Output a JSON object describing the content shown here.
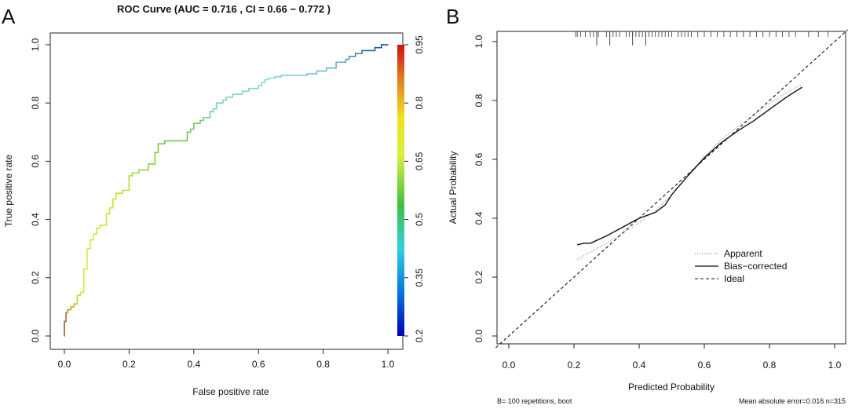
{
  "panel_labels": {
    "a": "A",
    "b": "B"
  },
  "chart_data": [
    {
      "type": "line",
      "title": "ROC Curve (AUC = 0.716 , CI = 0.66 − 0.772 )",
      "xlabel": "False positive rate",
      "ylabel": "True positive rate",
      "xlim": [
        0,
        1
      ],
      "ylim": [
        0,
        1
      ],
      "xticks": [
        "0.0",
        "0.2",
        "0.4",
        "0.6",
        "0.8",
        "1.0"
      ],
      "yticks": [
        "0.0",
        "0.2",
        "0.4",
        "0.6",
        "0.8",
        "1.0"
      ],
      "grid": false,
      "colorbar": {
        "ticks": [
          "0.2",
          "0.35",
          "0.5",
          "0.65",
          "0.8",
          "0.95"
        ],
        "range": [
          0.2,
          0.95
        ],
        "colors": [
          "#0000b0",
          "#0070e0",
          "#30d0e0",
          "#40c040",
          "#d8f040",
          "#f0e020",
          "#e08020",
          "#d01010"
        ]
      },
      "series": [
        {
          "x": [
            0,
            0,
            0.005,
            0.005,
            0.01,
            0.01,
            0.02,
            0.02,
            0.03,
            0.03,
            0.04,
            0.04,
            0.05,
            0.05,
            0.06,
            0.06,
            0.07,
            0.07,
            0.08,
            0.08,
            0.09,
            0.09,
            0.1,
            0.1,
            0.11,
            0.11,
            0.13,
            0.13,
            0.14,
            0.14,
            0.15,
            0.15,
            0.16,
            0.16,
            0.18,
            0.18,
            0.2,
            0.2,
            0.21,
            0.21,
            0.23,
            0.23,
            0.26,
            0.26,
            0.28,
            0.28,
            0.29,
            0.29,
            0.31,
            0.31,
            0.38,
            0.38,
            0.39,
            0.39,
            0.4,
            0.4,
            0.42,
            0.42,
            0.43,
            0.43,
            0.45,
            0.45,
            0.46,
            0.46,
            0.47,
            0.47,
            0.49,
            0.49,
            0.5,
            0.5,
            0.52,
            0.52,
            0.55,
            0.55,
            0.57,
            0.57,
            0.6,
            0.6,
            0.61,
            0.61,
            0.62,
            0.62,
            0.63,
            0.63,
            0.65,
            0.65,
            0.67,
            0.67,
            0.75,
            0.75,
            0.78,
            0.78,
            0.81,
            0.81,
            0.84,
            0.84,
            0.87,
            0.87,
            0.88,
            0.88,
            0.9,
            0.9,
            0.92,
            0.92,
            0.96,
            0.96,
            0.98,
            0.98,
            1.0
          ],
          "y": [
            0,
            0.05,
            0.05,
            0.08,
            0.08,
            0.09,
            0.09,
            0.1,
            0.1,
            0.11,
            0.11,
            0.14,
            0.14,
            0.15,
            0.15,
            0.23,
            0.23,
            0.3,
            0.3,
            0.33,
            0.33,
            0.35,
            0.35,
            0.37,
            0.37,
            0.38,
            0.38,
            0.42,
            0.42,
            0.44,
            0.44,
            0.47,
            0.47,
            0.49,
            0.49,
            0.5,
            0.5,
            0.55,
            0.55,
            0.56,
            0.56,
            0.57,
            0.57,
            0.59,
            0.59,
            0.63,
            0.63,
            0.66,
            0.66,
            0.67,
            0.67,
            0.7,
            0.7,
            0.71,
            0.71,
            0.73,
            0.73,
            0.74,
            0.74,
            0.75,
            0.75,
            0.77,
            0.77,
            0.78,
            0.78,
            0.8,
            0.8,
            0.81,
            0.81,
            0.82,
            0.82,
            0.83,
            0.83,
            0.84,
            0.84,
            0.85,
            0.85,
            0.86,
            0.86,
            0.87,
            0.87,
            0.88,
            0.88,
            0.885,
            0.885,
            0.89,
            0.89,
            0.895,
            0.895,
            0.9,
            0.9,
            0.91,
            0.91,
            0.92,
            0.92,
            0.94,
            0.94,
            0.95,
            0.95,
            0.96,
            0.96,
            0.97,
            0.97,
            0.98,
            0.98,
            0.99,
            0.99,
            1.0,
            1.0
          ]
        }
      ]
    },
    {
      "type": "line",
      "title": "",
      "xlabel": "Predicted Probability",
      "ylabel": "Actual Probability",
      "xlim": [
        -0.04,
        1.04
      ],
      "ylim": [
        -0.02,
        1.04
      ],
      "xticks": [
        "0.0",
        "0.2",
        "0.4",
        "0.6",
        "0.8",
        "1.0"
      ],
      "yticks": [
        "0.0",
        "0.2",
        "0.4",
        "0.6",
        "0.8",
        "1.0"
      ],
      "grid": false,
      "legend": {
        "position": "bottom-right",
        "entries": [
          "Apparent",
          "Bias−corrected",
          "Ideal"
        ]
      },
      "series": [
        {
          "name": "Apparent",
          "style": "dotted",
          "x": [
            0.21,
            0.25,
            0.3,
            0.35,
            0.4,
            0.45,
            0.5,
            0.55,
            0.6,
            0.65,
            0.7,
            0.75,
            0.8,
            0.85,
            0.9
          ],
          "y": [
            0.26,
            0.285,
            0.315,
            0.35,
            0.385,
            0.425,
            0.48,
            0.545,
            0.61,
            0.665,
            0.71,
            0.75,
            0.79,
            0.825,
            0.855
          ]
        },
        {
          "name": "Bias−corrected",
          "style": "solid",
          "x": [
            0.21,
            0.23,
            0.25,
            0.3,
            0.35,
            0.4,
            0.45,
            0.48,
            0.5,
            0.55,
            0.6,
            0.65,
            0.7,
            0.75,
            0.8,
            0.85,
            0.9
          ],
          "y": [
            0.31,
            0.315,
            0.315,
            0.34,
            0.37,
            0.4,
            0.42,
            0.445,
            0.48,
            0.545,
            0.605,
            0.655,
            0.695,
            0.73,
            0.77,
            0.81,
            0.845
          ]
        },
        {
          "name": "Ideal",
          "style": "dashed",
          "x": [
            -0.04,
            1.04
          ],
          "y": [
            -0.04,
            1.04
          ]
        }
      ],
      "rug": [
        0.205,
        0.21,
        0.22,
        0.235,
        0.25,
        0.26,
        0.27,
        0.275,
        0.3,
        0.31,
        0.32,
        0.33,
        0.34,
        0.36,
        0.37,
        0.38,
        0.39,
        0.4,
        0.41,
        0.42,
        0.43,
        0.44,
        0.45,
        0.46,
        0.47,
        0.48,
        0.49,
        0.5,
        0.52,
        0.53,
        0.54,
        0.55,
        0.56,
        0.58,
        0.6,
        0.62,
        0.64,
        0.66,
        0.68,
        0.7,
        0.72,
        0.74,
        0.76,
        0.78,
        0.8,
        0.82,
        0.84,
        0.86,
        0.88,
        0.92,
        0.95,
        0.98
      ],
      "rug_long": [
        0.27,
        0.31,
        0.38,
        0.42
      ],
      "footer_left": "B= 100 repetitions, boot",
      "footer_right": "Mean absolute error=0.016 n=315"
    }
  ]
}
